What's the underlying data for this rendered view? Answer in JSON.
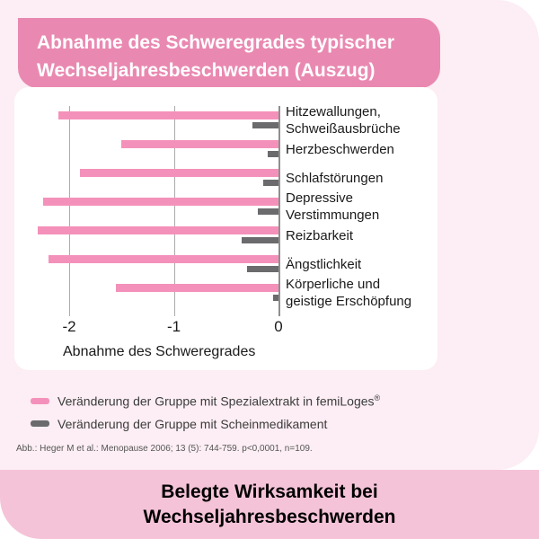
{
  "header": {
    "title_line1": "Abnahme des Schweregrades typischer",
    "title_line2": "Wechseljahresbeschwerden (Auszug)"
  },
  "chart_data": {
    "type": "bar",
    "orientation": "horizontal",
    "title": "Abnahme des Schweregrades typischer Wechseljahresbeschwerden (Auszug)",
    "categories": [
      "Hitzewallungen, Schweißausbrüche",
      "Herzbeschwerden",
      "Schlafstörungen",
      "Depressive Verstimmungen",
      "Reizbarkeit",
      "Ängstlichkeit",
      "Körperliche und geistige Erschöpfung"
    ],
    "categories_display_lines": [
      [
        "Hitzewallungen,",
        "Schweißausbrüche"
      ],
      [
        "Herzbeschwerden"
      ],
      [
        "Schlafstörungen"
      ],
      [
        "Depressive",
        "Verstimmungen"
      ],
      [
        "Reizbarkeit"
      ],
      [
        "Ängstlichkeit"
      ],
      [
        "Körperliche und",
        "geistige Erschöpfung"
      ]
    ],
    "series": [
      {
        "name": "Veränderung der Gruppe mit Spezialextrakt in femiLoges®",
        "color": "#f491ba",
        "values": [
          -2.1,
          -1.5,
          -1.9,
          -2.25,
          -2.3,
          -2.2,
          -1.55
        ]
      },
      {
        "name": "Veränderung der Gruppe mit Scheinmedikament",
        "color": "#6b6b6d",
        "values": [
          -0.25,
          -0.1,
          -0.15,
          -0.2,
          -0.35,
          -0.3,
          -0.05
        ]
      }
    ],
    "xlabel": "Abnahme des Schweregrades",
    "xticks": [
      "-2",
      "-1",
      "0"
    ],
    "xtick_values": [
      -2,
      -1,
      0
    ],
    "xlim": [
      -2.52,
      0
    ],
    "grid": true,
    "legend_position": "below-chart"
  },
  "legend": {
    "items": [
      {
        "pre": "Veränderung der Gruppe mit Spezialextrakt in femiLoges",
        "sup": "®",
        "color": "#f491ba"
      },
      {
        "pre": "Veränderung der Gruppe mit Scheinmedikament",
        "sup": "",
        "color": "#6b6b6d"
      }
    ]
  },
  "footnote": "Abb.: Heger M et al.: Menopause 2006; 13 (5): 744-759. p<0,0001, n=109.",
  "footer": {
    "line1": "Belegte Wirksamkeit bei",
    "line2": "Wechseljahresbeschwerden"
  },
  "colors": {
    "panel_bg": "#fceef4",
    "header_bg": "#e989b1",
    "card_bg": "#ffffff",
    "bar_pink": "#f491ba",
    "bar_gray": "#6b6b6d",
    "footer_bg": "#f5c3d8",
    "gridline": "#ababab"
  }
}
